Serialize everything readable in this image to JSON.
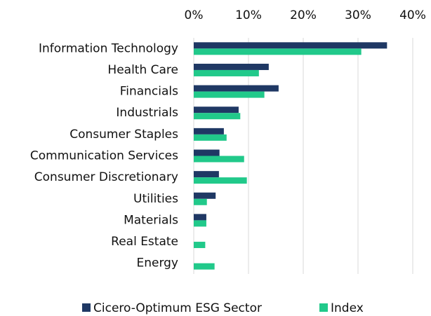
{
  "chart_data": {
    "type": "hbar",
    "categories": [
      "Information Technology",
      "Health Care",
      "Financials",
      "Industrials",
      "Consumer Staples",
      "Communication Services",
      "Consumer Discretionary",
      "Utilities",
      "Materials",
      "Real Estate",
      "Energy"
    ],
    "series": [
      {
        "name": "Cicero-Optimum ESG Sector",
        "color": "#1f3864",
        "values": [
          35.3,
          13.7,
          15.5,
          8.2,
          5.5,
          4.7,
          4.6,
          4.0,
          2.3,
          0,
          0
        ]
      },
      {
        "name": "Index",
        "color": "#21c98a",
        "values": [
          30.6,
          11.9,
          12.9,
          8.5,
          6.0,
          9.2,
          9.7,
          2.4,
          2.3,
          2.1,
          3.8
        ]
      }
    ],
    "xlim": [
      0,
      40
    ],
    "xticks": [
      {
        "value": 0,
        "label": "0%"
      },
      {
        "value": 10,
        "label": "10%"
      },
      {
        "value": 20,
        "label": "20%"
      },
      {
        "value": 30,
        "label": "30%"
      },
      {
        "value": 40,
        "label": "40%"
      }
    ],
    "grid": true,
    "legend": "bottom"
  }
}
